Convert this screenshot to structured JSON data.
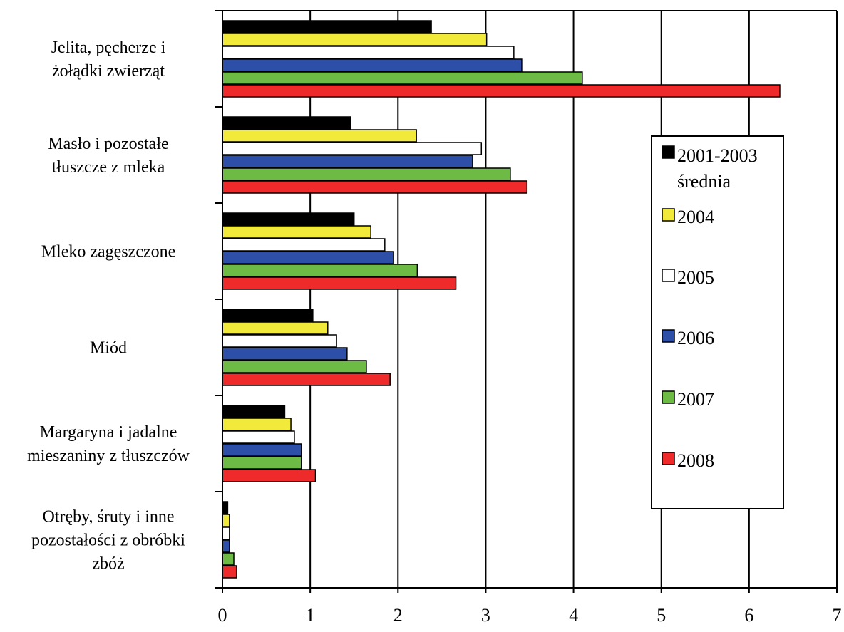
{
  "chart_data": {
    "type": "bar",
    "orientation": "horizontal",
    "categories": [
      [
        "Jelita, pęcherze i",
        "żołądki zwierząt"
      ],
      [
        "Masło i pozostałe",
        "tłuszcze z mleka"
      ],
      [
        "Mleko zagęszczone"
      ],
      [
        "Miód"
      ],
      [
        "Margaryna i jadalne",
        "mieszaniny z tłuszczów"
      ],
      [
        "Otręby, śruty i inne",
        "pozostałości z obróbki",
        "zbóż"
      ]
    ],
    "series": [
      {
        "name": "2001-2003 średnia",
        "legend_lines": [
          "2001-2003",
          "średnia"
        ],
        "color": "#000000",
        "values": [
          2.38,
          1.46,
          1.5,
          1.03,
          0.71,
          0.06
        ]
      },
      {
        "name": "2004",
        "legend_lines": [
          "2004"
        ],
        "color": "#f2ea3a",
        "values": [
          3.01,
          2.21,
          1.69,
          1.2,
          0.78,
          0.08
        ]
      },
      {
        "name": "2005",
        "legend_lines": [
          "2005"
        ],
        "color": "#ffffff",
        "values": [
          3.32,
          2.95,
          1.85,
          1.3,
          0.82,
          0.08
        ]
      },
      {
        "name": "2006",
        "legend_lines": [
          "2006"
        ],
        "color": "#2e4fa8",
        "values": [
          3.41,
          2.85,
          1.95,
          1.42,
          0.9,
          0.08
        ]
      },
      {
        "name": "2007",
        "legend_lines": [
          "2007"
        ],
        "color": "#6dbb45",
        "values": [
          4.1,
          3.28,
          2.22,
          1.64,
          0.9,
          0.13
        ]
      },
      {
        "name": "2008",
        "legend_lines": [
          "2008"
        ],
        "color": "#ee2a2a",
        "values": [
          6.35,
          3.47,
          2.66,
          1.91,
          1.06,
          0.16
        ]
      }
    ],
    "xticks": [
      "0",
      "1",
      "2",
      "3",
      "4",
      "5",
      "6",
      "7"
    ],
    "xlim": [
      0,
      7
    ],
    "grid": "vertical",
    "legend_position": "right",
    "title": "",
    "xlabel": "",
    "ylabel": ""
  }
}
